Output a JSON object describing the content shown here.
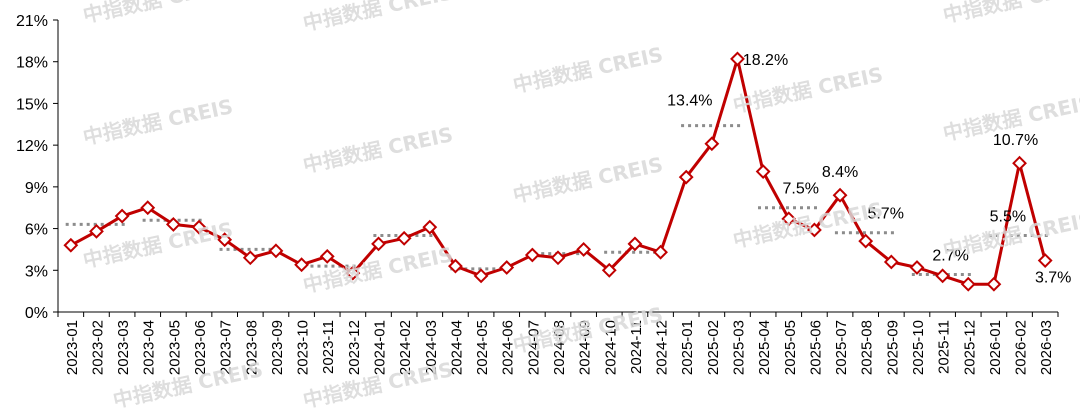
{
  "watermark_text": "中指数据 CREIS",
  "colors": {
    "line": "#c00000",
    "marker_fill": "#ffffff",
    "average": "#8c8c8c",
    "axis": "#000000",
    "watermark": "#d9d9d9"
  },
  "chart_data": {
    "type": "line",
    "title": "",
    "xlabel": "",
    "ylabel": "",
    "ylim": [
      0,
      21
    ],
    "yticks": [
      0,
      3,
      6,
      9,
      12,
      15,
      18,
      21
    ],
    "ytick_labels": [
      "0%",
      "3%",
      "6%",
      "9%",
      "12%",
      "15%",
      "18%",
      "21%"
    ],
    "grid": false,
    "legend": "none",
    "categories": [
      "2023-01",
      "2023-02",
      "2023-03",
      "2023-04",
      "2023-05",
      "2023-06",
      "2023-07",
      "2023-08",
      "2023-09",
      "2023-10",
      "2023-11",
      "2023-12",
      "2024-01",
      "2024-02",
      "2024-03",
      "2024-04",
      "2024-05",
      "2024-06",
      "2024-07",
      "2024-08",
      "2024-09",
      "2024-10",
      "2024-11",
      "2024-12",
      "2025-01",
      "2025-02",
      "2025-03",
      "2025-04",
      "2025-05",
      "2025-06",
      "2025-07",
      "2025-08",
      "2025-09",
      "2025-10",
      "2025-11",
      "2025-12",
      "2026-01",
      "2026-02",
      "2026-03"
    ],
    "series": [
      {
        "values": [
          4.8,
          5.8,
          6.9,
          7.5,
          6.3,
          6.1,
          5.2,
          3.9,
          4.4,
          3.4,
          4.0,
          2.8,
          4.9,
          5.3,
          6.1,
          3.3,
          2.6,
          3.2,
          4.1,
          3.9,
          4.5,
          3.0,
          4.9,
          4.3,
          9.7,
          12.1,
          18.2,
          10.1,
          6.7,
          5.9,
          8.4,
          5.1,
          3.6,
          3.2,
          2.6,
          2.0,
          2.0,
          10.7,
          3.7
        ]
      }
    ],
    "averages": [
      {
        "from": "2023-01",
        "to": "2023-03",
        "value": 6.3
      },
      {
        "from": "2023-04",
        "to": "2023-06",
        "value": 6.6
      },
      {
        "from": "2023-07",
        "to": "2023-09",
        "value": 4.5
      },
      {
        "from": "2023-10",
        "to": "2023-12",
        "value": 3.3
      },
      {
        "from": "2024-01",
        "to": "2024-03",
        "value": 5.5
      },
      {
        "from": "2024-04",
        "to": "2024-06",
        "value": 3.1
      },
      {
        "from": "2024-07",
        "to": "2024-09",
        "value": 4.2
      },
      {
        "from": "2024-10",
        "to": "2024-12",
        "value": 4.3
      },
      {
        "from": "2025-01",
        "to": "2025-03",
        "value": 13.4
      },
      {
        "from": "2025-04",
        "to": "2025-06",
        "value": 7.5
      },
      {
        "from": "2025-07",
        "to": "2025-09",
        "value": 5.7
      },
      {
        "from": "2025-10",
        "to": "2025-12",
        "value": 2.7
      },
      {
        "from": "2026-01",
        "to": "2026-03",
        "value": 5.5
      }
    ],
    "annotations": [
      {
        "category": "2025-03",
        "value": 18.2,
        "text": "18.2%",
        "dx": 28,
        "dy": 6
      },
      {
        "category": "2025-02",
        "value": 13.4,
        "text": "13.4%",
        "dx": -22,
        "dy": -20
      },
      {
        "category": "2025-05",
        "value": 7.5,
        "text": "7.5%",
        "dx": 12,
        "dy": -14
      },
      {
        "category": "2025-07",
        "value": 8.4,
        "text": "8.4%",
        "dx": 0,
        "dy": -18
      },
      {
        "category": "2025-08",
        "value": 5.7,
        "text": "5.7%",
        "dx": 20,
        "dy": -14
      },
      {
        "category": "2025-11",
        "value": 2.7,
        "text": "2.7%",
        "dx": 8,
        "dy": -14
      },
      {
        "category": "2026-02",
        "value": 10.7,
        "text": "10.7%",
        "dx": -4,
        "dy": -18
      },
      {
        "category": "2026-01",
        "value": 5.5,
        "text": "5.5%",
        "dx": 14,
        "dy": -14
      },
      {
        "category": "2026-03",
        "value": 3.7,
        "text": "3.7%",
        "dx": 8,
        "dy": 22
      }
    ]
  }
}
